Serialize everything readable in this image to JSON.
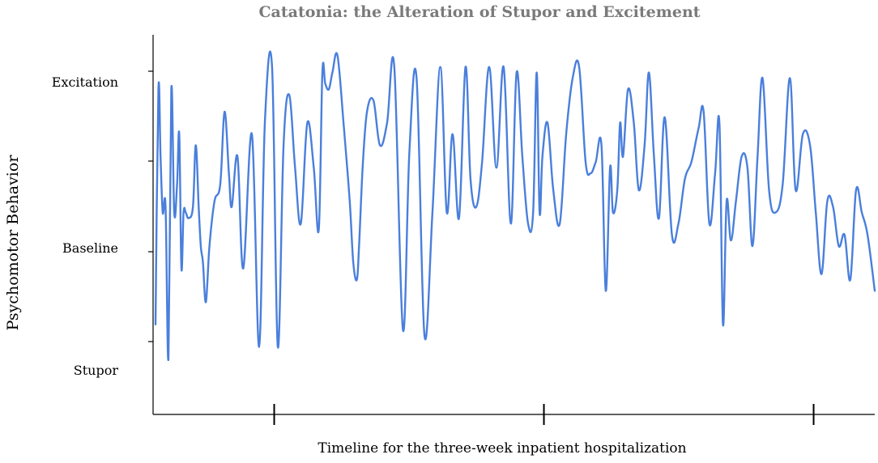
{
  "chart_data": {
    "type": "line",
    "title": "Catatonia: the Alteration of Stupor and Excitement",
    "xlabel": "Timeline for the three-week inpatient hospitalization",
    "ylabel": "Psychomotor Behavior",
    "y_tick_labels": [
      "Stupor",
      "Baseline",
      "Excitation"
    ],
    "xlim": [
      0,
      100
    ],
    "ylim": [
      -1.5,
      1.5
    ],
    "grid": false,
    "line_color": "#4a7fdc",
    "series": [
      {
        "x": [
          0,
          0.4,
          0.7,
          1.0,
          1.4,
          1.8,
          2.2,
          2.6,
          3.0,
          3.3,
          3.6,
          3.9,
          4.2,
          4.6,
          5.2,
          5.6,
          6.0,
          6.3,
          6.6,
          7.0,
          7.5,
          8.2,
          9.0,
          9.6,
          10.2,
          10.6,
          11.4,
          12.2,
          13.4,
          14.4,
          15.2,
          16.2,
          17.0,
          17.8,
          18.6,
          19.4,
          20.2,
          21.1,
          22.0,
          22.7,
          23.2,
          23.6,
          24.1,
          24.6,
          25.3,
          26.2,
          27.0,
          27.5,
          28.0,
          28.3,
          28.8,
          29.4,
          30.3,
          31.2,
          32.2,
          33.2,
          34.4,
          35.3,
          36.3,
          37.4,
          38.5,
          39.6,
          40.5,
          41.3,
          42.2,
          43.1,
          43.8,
          44.6,
          45.4,
          46.4,
          47.4,
          48.4,
          49.4,
          50.2,
          51.0,
          51.8,
          52.5,
          53.0,
          53.4,
          53.8,
          54.5,
          55.3,
          56.2,
          57.1,
          58.0,
          58.9,
          59.8,
          60.5,
          61.2,
          62.0,
          62.6,
          63.2,
          63.6,
          64.2,
          64.6,
          65.0,
          65.7,
          66.5,
          67.2,
          68.0,
          68.6,
          69.3,
          70.0,
          70.8,
          71.8,
          72.7,
          73.6,
          74.5,
          75.5,
          76.2,
          77.0,
          77.8,
          78.4,
          78.9,
          79.4,
          80.0,
          80.7,
          81.5,
          82.3,
          83.0,
          83.7,
          84.4,
          85.3,
          86.2,
          87.2,
          88.2,
          89.0,
          90.0,
          91.0,
          91.8,
          92.6,
          93.4,
          94.2,
          95.0,
          95.8,
          96.6,
          97.4,
          98.2,
          99.0,
          100
        ],
        "values": [
          -1.0,
          1.1,
          0.5,
          0.0,
          0.05,
          -1.3,
          1.1,
          0.0,
          0.25,
          0.7,
          -0.5,
          0.0,
          0.0,
          -0.05,
          0.05,
          0.6,
          0.05,
          -0.3,
          -0.45,
          -0.8,
          -0.3,
          0.1,
          0.25,
          0.9,
          0.35,
          0.05,
          0.5,
          -0.5,
          0.7,
          -1.2,
          0.8,
          1.3,
          -1.2,
          0.6,
          1.05,
          0.4,
          -0.1,
          0.8,
          0.4,
          -0.15,
          1.25,
          1.15,
          1.1,
          1.25,
          1.4,
          0.75,
          0.1,
          -0.45,
          -0.6,
          -0.3,
          0.4,
          0.9,
          1.0,
          0.6,
          0.8,
          1.3,
          -1.05,
          0.55,
          1.2,
          -1.1,
          0.0,
          1.3,
          0.0,
          0.7,
          -0.05,
          1.3,
          0.3,
          0.05,
          0.45,
          1.3,
          0.4,
          1.3,
          -0.1,
          1.25,
          0.5,
          -0.1,
          0.0,
          1.25,
          0.0,
          0.5,
          0.8,
          0.2,
          -0.1,
          0.7,
          1.2,
          1.3,
          0.45,
          0.35,
          0.45,
          0.6,
          -0.7,
          0.4,
          0.0,
          0.2,
          0.8,
          0.5,
          1.1,
          0.8,
          0.2,
          0.6,
          1.25,
          0.5,
          -0.05,
          0.85,
          -0.2,
          -0.1,
          0.3,
          0.45,
          0.75,
          0.9,
          -0.1,
          0.35,
          0.8,
          -1.0,
          0.1,
          -0.25,
          0.1,
          0.5,
          0.4,
          -0.3,
          0.5,
          1.2,
          0.2,
          0.0,
          0.25,
          1.2,
          0.2,
          0.7,
          0.6,
          0.0,
          -0.55,
          0.1,
          0.05,
          -0.3,
          -0.2,
          -0.6,
          0.2,
          0.0,
          -0.2,
          -0.7
        ]
      }
    ]
  }
}
